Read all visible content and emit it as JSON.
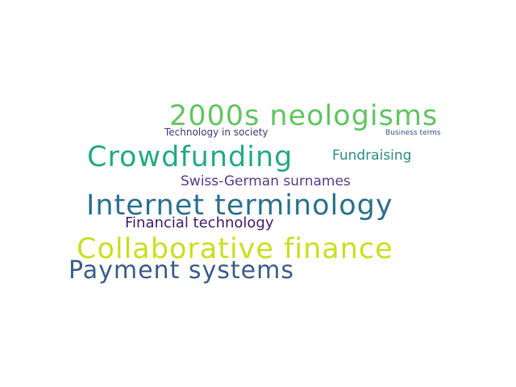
{
  "words": [
    {
      "text": "2000s neologisms",
      "color": "#63c562"
    },
    {
      "text": "Technology in society",
      "color": "#433e85"
    },
    {
      "text": "Business terms",
      "color": "#3b528b"
    },
    {
      "text": "Crowdfunding",
      "color": "#25ab82"
    },
    {
      "text": "Fundraising",
      "color": "#2f8e8c"
    },
    {
      "text": "Swiss-German surnames",
      "color": "#5a3f8a"
    },
    {
      "text": "Internet terminology",
      "color": "#2c728e"
    },
    {
      "text": "Financial technology",
      "color": "#461f6b"
    },
    {
      "text": "Collaborative finance",
      "color": "#c8e020"
    },
    {
      "text": "Payment systems",
      "color": "#3e5e8c"
    }
  ],
  "background": "#ffffff"
}
